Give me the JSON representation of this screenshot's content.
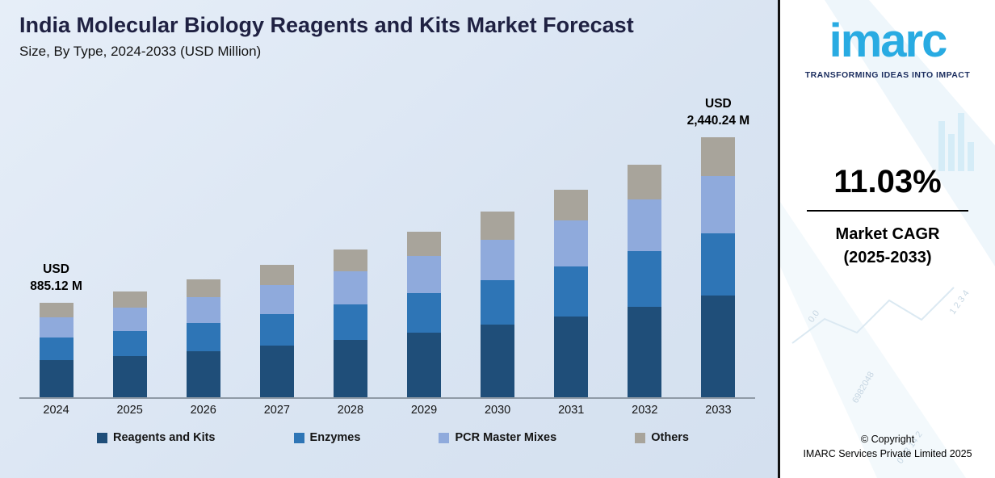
{
  "header": {
    "title": "India Molecular Biology Reagents and Kits Market Forecast",
    "subtitle": "Size, By Type, 2024-2033 (USD Million)"
  },
  "chart_data": {
    "type": "bar",
    "stacked": true,
    "title": "India Molecular Biology Reagents and Kits Market Forecast",
    "subtitle": "Size, By Type, 2024-2033 (USD Million)",
    "xlabel": "",
    "ylabel": "USD Million",
    "ylim": [
      0,
      2500
    ],
    "grid": false,
    "legend_position": "bottom",
    "categories": [
      "2024",
      "2025",
      "2026",
      "2027",
      "2028",
      "2029",
      "2030",
      "2031",
      "2032",
      "2033"
    ],
    "series": [
      {
        "name": "Reagents and Kits",
        "color": "#1f4e79",
        "values": [
          345.2,
          386.4,
          432.5,
          484.1,
          541.8,
          606.5,
          678.8,
          759.8,
          850.4,
          951.7
        ]
      },
      {
        "name": "Enzymes",
        "color": "#2e75b6",
        "values": [
          212.4,
          237.8,
          266.1,
          297.9,
          333.4,
          373.2,
          417.7,
          467.6,
          523.3,
          585.7
        ]
      },
      {
        "name": "PCR Master Mixes",
        "color": "#8faadc",
        "values": [
          194.7,
          218.0,
          244.0,
          273.1,
          305.6,
          342.1,
          382.9,
          428.6,
          479.7,
          536.9
        ]
      },
      {
        "name": "Others",
        "color": "#a8a49b",
        "values": [
          132.8,
          148.6,
          166.3,
          186.2,
          208.4,
          233.3,
          261.1,
          292.2,
          327.1,
          366.0
        ]
      }
    ],
    "totals": [
      885.12,
      990.7,
      1108.9,
      1241.2,
      1389.3,
      1555.0,
      1740.5,
      1948.2,
      2180.6,
      2440.24
    ],
    "annotations": [
      {
        "index": 0,
        "line1": "USD",
        "line2": "885.12 M"
      },
      {
        "index": 9,
        "line1": "USD",
        "line2": "2,440.24 M"
      }
    ]
  },
  "sidebar": {
    "logo_text": "imarc",
    "tagline": "TRANSFORMING IDEAS INTO IMPACT",
    "brand_color": "#29abe2",
    "cagr_value": "11.03%",
    "cagr_label1": "Market CAGR",
    "cagr_label2": "(2025-2033)",
    "copyright_line1": "© Copyright",
    "copyright_line2": "IMARC Services Private Limited 2025",
    "decor_numbers": [
      "0.0",
      "1 2 3 4",
      "6982048",
      "0 13 14 2"
    ]
  }
}
